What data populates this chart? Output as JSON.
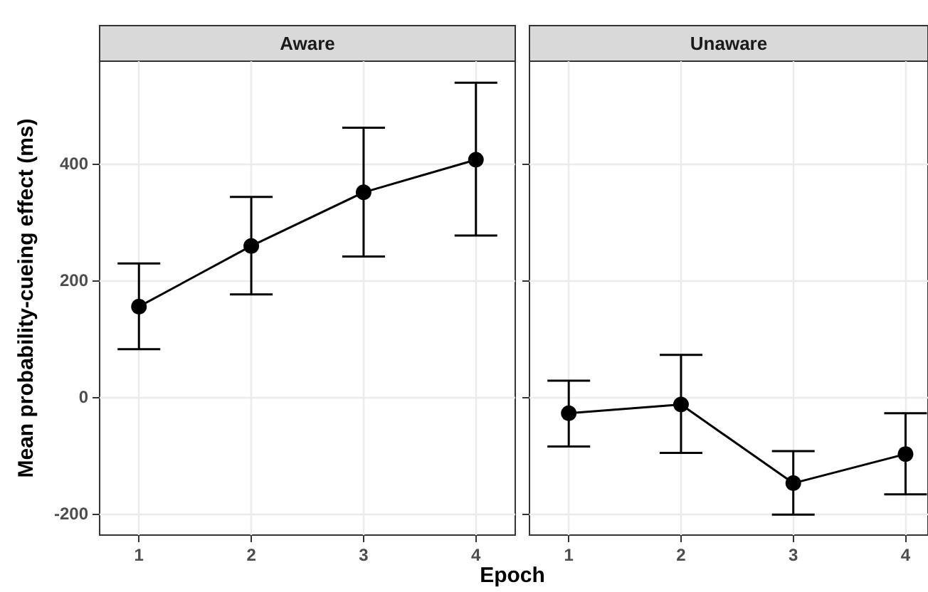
{
  "chart_data": [
    {
      "type": "line",
      "title": "Aware",
      "ylabel": "Mean probability-cueing effect (ms)",
      "xlabel": "Epoch",
      "x": [
        1,
        2,
        3,
        4
      ],
      "series": [
        {
          "color": "#000000",
          "values": [
            155,
            259,
            351,
            407
          ],
          "errors": [
            [
              82,
              229
            ],
            [
              176,
              343
            ],
            [
              241,
              462
            ],
            [
              277,
              539
            ]
          ]
        }
      ],
      "xlim": [
        0.65,
        4.35
      ],
      "xticks": [
        1,
        2,
        3,
        4
      ],
      "ylim": [
        -237,
        576
      ],
      "yticks": [
        -200,
        0,
        200,
        400
      ],
      "grid": true,
      "marker": "circle"
    },
    {
      "type": "line",
      "title": "Unaware",
      "x": [
        1,
        2,
        3,
        4
      ],
      "series": [
        {
          "color": "#000000",
          "values": [
            -28,
            -13,
            -148,
            -98
          ],
          "errors": [
            [
              -85,
              28
            ],
            [
              -96,
              72
            ],
            [
              -202,
              -93
            ],
            [
              -167,
              -28
            ]
          ]
        }
      ],
      "xlim": [
        0.65,
        4.2
      ],
      "xticks": [
        1,
        2,
        3,
        4
      ],
      "ylim": [
        -237,
        576
      ],
      "yticks": [
        -200,
        0,
        200,
        400
      ],
      "grid": true,
      "marker": "circle",
      "tick_labels": "x"
    }
  ]
}
